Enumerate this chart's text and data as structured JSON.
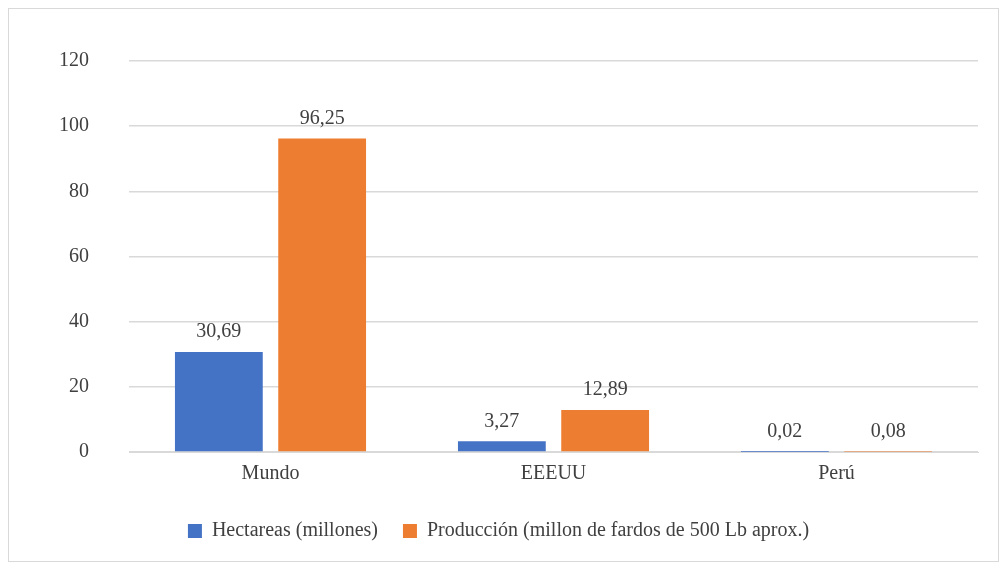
{
  "chart_data": {
    "type": "bar",
    "categories": [
      "Mundo",
      "EEEUU",
      "Perú"
    ],
    "series": [
      {
        "name": "Hectareas (millones)",
        "color": "#4472c4",
        "values": [
          30.69,
          3.27,
          0.02
        ],
        "value_labels": [
          "30,69",
          "3,27",
          "0,02"
        ]
      },
      {
        "name": "Producción (millon de fardos de 500 Lb aprox.)",
        "color": "#ed7d31",
        "values": [
          96.25,
          12.89,
          0.08
        ],
        "value_labels": [
          "96,25",
          "12,89",
          "0,08"
        ]
      }
    ],
    "ylim": [
      0,
      120
    ],
    "yticks": [
      0,
      20,
      40,
      60,
      80,
      100,
      120
    ],
    "grid": "y",
    "legend": "bottom"
  }
}
